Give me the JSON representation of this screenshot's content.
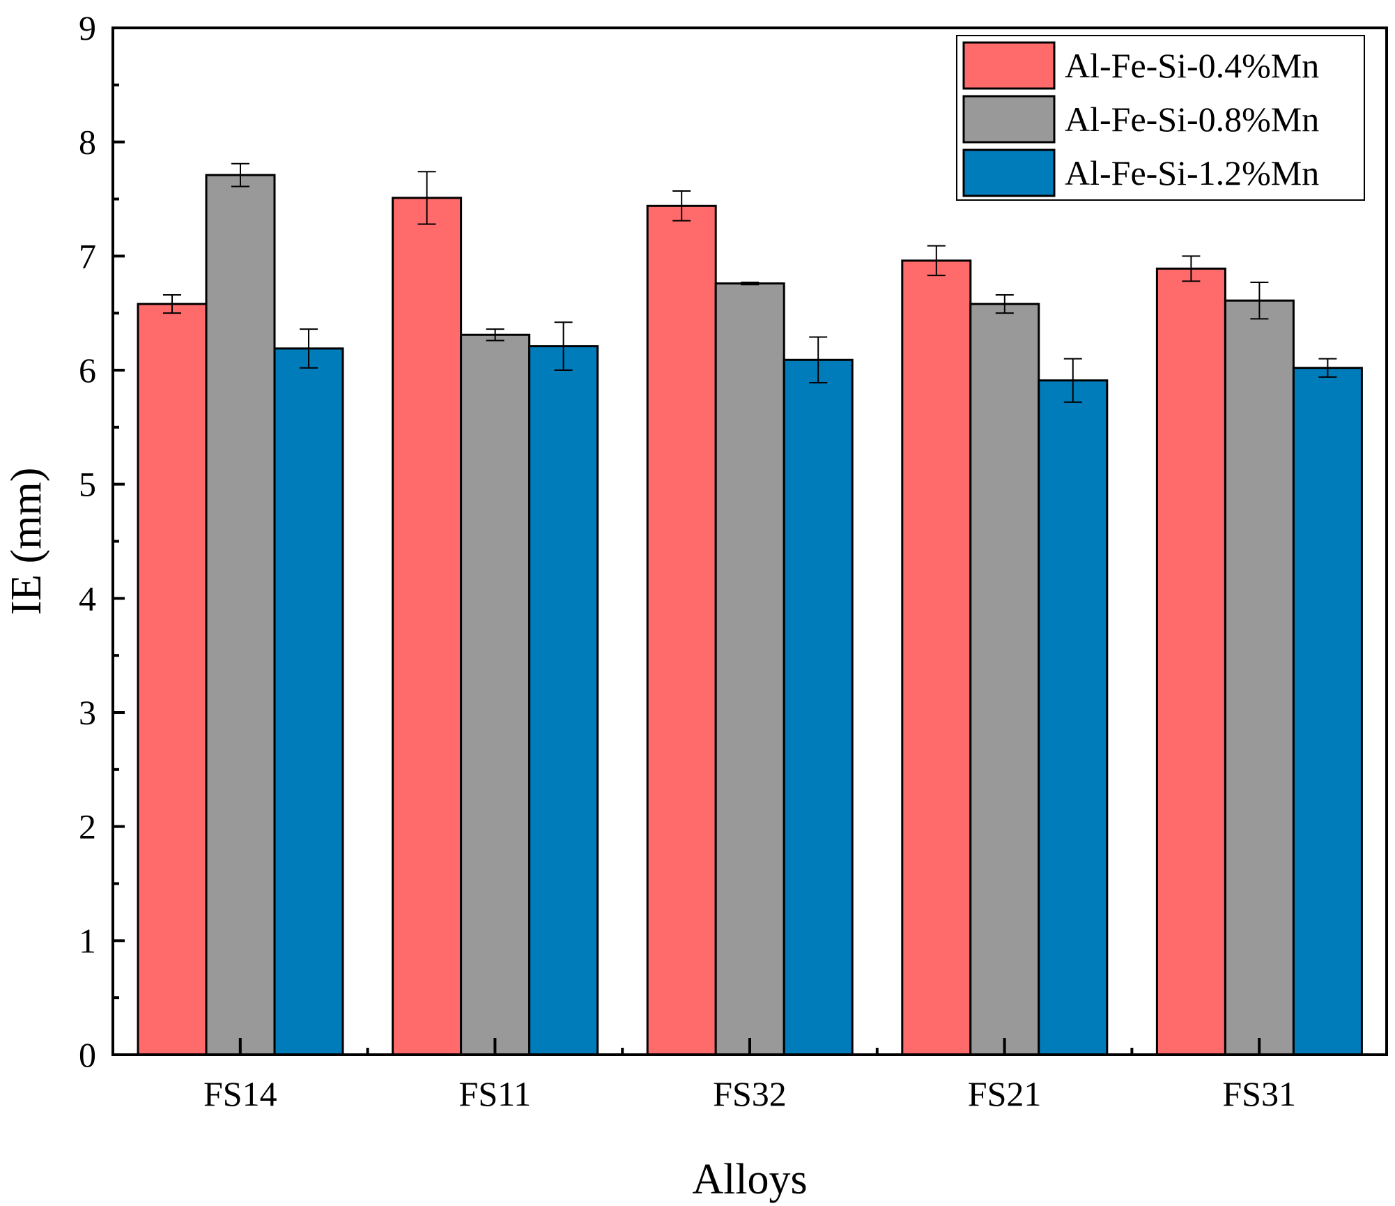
{
  "chart_data": {
    "type": "bar",
    "title": "",
    "xlabel": "Alloys",
    "ylabel": "IE (mm)",
    "ylim": [
      0,
      9
    ],
    "yticks": [
      "0",
      "1",
      "2",
      "3",
      "4",
      "5",
      "6",
      "7",
      "8",
      "9"
    ],
    "categories": [
      "FS14",
      "FS11",
      "FS32",
      "FS21",
      "FS31"
    ],
    "legend_position": "top-right",
    "series": [
      {
        "name": "Al-Fe-Si-0.4%Mn",
        "color": "#ff6b6b",
        "values": [
          6.58,
          7.51,
          7.44,
          6.96,
          6.89
        ],
        "errors": [
          0.08,
          0.23,
          0.13,
          0.13,
          0.11
        ]
      },
      {
        "name": "Al-Fe-Si-0.8%Mn",
        "color": "#999999",
        "values": [
          7.71,
          6.31,
          6.76,
          6.58,
          6.61
        ],
        "errors": [
          0.1,
          0.05,
          0.01,
          0.08,
          0.16
        ]
      },
      {
        "name": "Al-Fe-Si-1.2%Mn",
        "color": "#007cbb",
        "values": [
          6.19,
          6.21,
          6.09,
          5.91,
          6.02
        ],
        "errors": [
          0.17,
          0.21,
          0.2,
          0.19,
          0.08
        ]
      }
    ]
  }
}
